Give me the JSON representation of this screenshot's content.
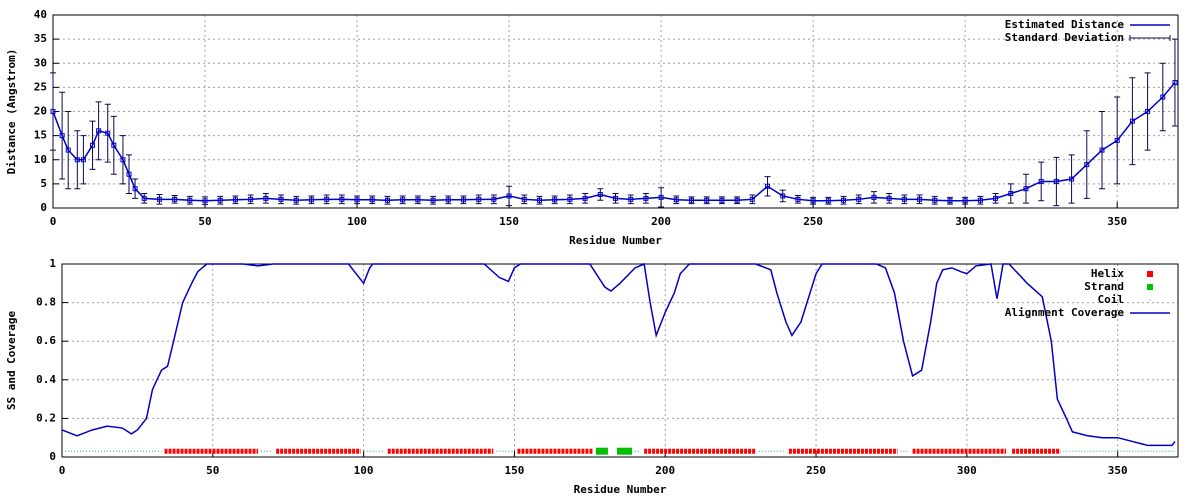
{
  "chart_data": [
    {
      "type": "line",
      "x_label": "Residue Number",
      "y_label": "Distance (Angstrom)",
      "x": [
        0,
        3,
        5,
        8,
        10,
        13,
        15,
        18,
        20,
        23,
        25,
        27,
        30,
        35,
        40,
        45,
        50,
        55,
        60,
        65,
        70,
        75,
        80,
        85,
        90,
        95,
        100,
        105,
        110,
        115,
        120,
        125,
        130,
        135,
        140,
        145,
        150,
        155,
        160,
        165,
        170,
        175,
        180,
        185,
        190,
        195,
        200,
        205,
        210,
        215,
        220,
        225,
        230,
        235,
        240,
        245,
        250,
        255,
        260,
        265,
        270,
        275,
        280,
        285,
        290,
        295,
        300,
        305,
        310,
        315,
        320,
        325,
        330,
        335,
        340,
        345,
        350,
        355,
        360,
        365,
        369
      ],
      "series": [
        {
          "name": "Estimated Distance",
          "color": "#0000c8",
          "values": [
            20,
            15,
            12,
            10,
            10,
            13,
            16,
            15.5,
            13,
            10,
            7,
            4,
            2,
            1.8,
            1.8,
            1.6,
            1.5,
            1.6,
            1.7,
            1.8,
            2,
            1.8,
            1.6,
            1.7,
            1.8,
            1.8,
            1.7,
            1.7,
            1.6,
            1.7,
            1.7,
            1.6,
            1.7,
            1.7,
            1.8,
            1.8,
            2.5,
            1.8,
            1.6,
            1.7,
            1.8,
            2,
            2.8,
            2,
            1.8,
            2,
            2.2,
            1.7,
            1.6,
            1.6,
            1.6,
            1.6,
            1.8,
            4.5,
            2.5,
            1.8,
            1.5,
            1.5,
            1.6,
            1.8,
            2.2,
            2,
            1.8,
            1.8,
            1.6,
            1.5,
            1.5,
            1.6,
            2,
            3,
            4,
            5.5,
            5.5,
            6,
            9,
            12,
            14,
            18,
            20,
            23,
            26
          ]
        },
        {
          "name": "Standard Deviation",
          "color": "#0a0a50",
          "kind": "errorbar",
          "values": [
            8,
            9,
            8,
            6,
            5,
            5,
            6,
            6,
            6,
            5,
            4,
            2,
            1,
            1,
            0.8,
            0.8,
            0.8,
            0.8,
            0.8,
            0.9,
            1,
            0.9,
            0.8,
            0.8,
            0.9,
            0.9,
            0.8,
            0.8,
            0.8,
            0.8,
            0.8,
            0.8,
            0.8,
            0.8,
            0.9,
            0.9,
            2,
            0.9,
            0.8,
            0.8,
            0.9,
            1,
            1.2,
            1,
            0.9,
            1,
            2,
            0.8,
            0.7,
            0.7,
            0.7,
            0.7,
            0.9,
            2,
            1.2,
            0.8,
            0.7,
            0.7,
            0.8,
            0.9,
            1.2,
            1,
            0.9,
            0.9,
            0.8,
            0.7,
            0.7,
            0.8,
            1,
            2,
            3,
            4,
            5,
            5,
            7,
            8,
            9,
            9,
            8,
            7,
            9
          ]
        }
      ],
      "xlim": [
        0,
        370
      ],
      "xticks": [
        0,
        50,
        100,
        150,
        200,
        250,
        300,
        350
      ],
      "ylim": [
        0,
        40
      ],
      "yticks": [
        0,
        5,
        10,
        15,
        20,
        25,
        30,
        35,
        40
      ],
      "grid": true,
      "legend": "top-right"
    },
    {
      "type": "line",
      "x_label": "Residue Number",
      "y_label": "SS and Coverage",
      "x": [
        0,
        5,
        10,
        15,
        20,
        23,
        25,
        28,
        30,
        33,
        35,
        37,
        40,
        43,
        45,
        48,
        50,
        60,
        65,
        70,
        80,
        90,
        95,
        100,
        102,
        103,
        110,
        120,
        130,
        140,
        145,
        148,
        150,
        152,
        160,
        170,
        175,
        180,
        182,
        185,
        190,
        193,
        195,
        197,
        200,
        203,
        205,
        208,
        220,
        230,
        235,
        237,
        240,
        242,
        245,
        248,
        250,
        252,
        260,
        270,
        273,
        276,
        279,
        282,
        285,
        288,
        290,
        292,
        295,
        298,
        300,
        303,
        308,
        310,
        312,
        314,
        317,
        320,
        325,
        328,
        330,
        333,
        335,
        340,
        345,
        350,
        355,
        360,
        365,
        368,
        369
      ],
      "series": [
        {
          "name": "Helix",
          "color": "#ff0000",
          "kind": "ranges",
          "level": 0.03,
          "ranges": [
            [
              34,
              65
            ],
            [
              71,
              99
            ],
            [
              108,
              143
            ],
            [
              151,
              176
            ],
            [
              193,
              230
            ],
            [
              241,
              277
            ],
            [
              282,
              313
            ],
            [
              315,
              331
            ]
          ]
        },
        {
          "name": "Strand",
          "color": "#00c000",
          "kind": "ranges",
          "level": 0.03,
          "ranges": [
            [
              177,
              181
            ],
            [
              184,
              189
            ]
          ]
        },
        {
          "name": "Coil",
          "color": "#20a0a0",
          "kind": "ranges",
          "level": 0.03,
          "ranges": [
            [
              0,
              33
            ],
            [
              66,
              70
            ],
            [
              100,
              107
            ],
            [
              144,
              150
            ],
            [
              190,
              192
            ],
            [
              231,
              240
            ],
            [
              278,
              281
            ],
            [
              332,
              369
            ]
          ]
        },
        {
          "name": "Alignment Coverage",
          "color": "#0000c8",
          "values": [
            0.14,
            0.11,
            0.14,
            0.16,
            0.15,
            0.12,
            0.14,
            0.2,
            0.35,
            0.45,
            0.47,
            0.6,
            0.8,
            0.9,
            0.96,
            1,
            1,
            1,
            0.99,
            1,
            1,
            1,
            1,
            0.9,
            0.98,
            1,
            1,
            1,
            1,
            1,
            0.93,
            0.91,
            0.98,
            1,
            1,
            1,
            1,
            0.88,
            0.86,
            0.9,
            0.98,
            1,
            0.8,
            0.63,
            0.75,
            0.85,
            0.95,
            1,
            1,
            1,
            0.97,
            0.85,
            0.7,
            0.63,
            0.7,
            0.85,
            0.95,
            1,
            1,
            1,
            0.98,
            0.85,
            0.6,
            0.42,
            0.45,
            0.7,
            0.9,
            0.97,
            0.98,
            0.96,
            0.95,
            0.99,
            1,
            0.82,
            1,
            1,
            0.95,
            0.9,
            0.83,
            0.6,
            0.3,
            0.2,
            0.13,
            0.11,
            0.1,
            0.1,
            0.08,
            0.06,
            0.06,
            0.06,
            0.08
          ]
        }
      ],
      "xlim": [
        0,
        370
      ],
      "xticks": [
        0,
        50,
        100,
        150,
        200,
        250,
        300,
        350
      ],
      "ylim": [
        0,
        1
      ],
      "yticks": [
        0,
        0.2,
        0.4,
        0.6,
        0.8,
        1
      ],
      "grid": true,
      "legend": "top-right"
    }
  ]
}
